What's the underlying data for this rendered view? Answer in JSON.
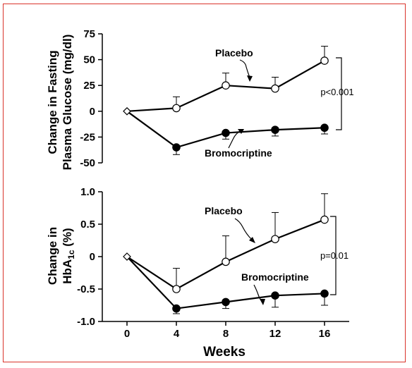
{
  "colors": {
    "frame": "#d9342b",
    "ink": "#000000",
    "open_marker": "#ffffff"
  },
  "chart_data": [
    {
      "type": "line",
      "ylabel_line1": "Change in Fasting",
      "ylabel_line2": "Plasma Glucose (mg/dl)",
      "xlabel": "",
      "x": [
        0,
        4,
        8,
        12,
        16
      ],
      "xlim": [
        -2,
        18
      ],
      "ylim": [
        -50,
        75
      ],
      "yticks": [
        75,
        50,
        25,
        0,
        -25,
        -50
      ],
      "ytick_labels": [
        "75",
        "50",
        "25",
        "0",
        "-25",
        "-50"
      ],
      "series": [
        {
          "name": "Placebo",
          "marker": "open-circle",
          "values": [
            0,
            3,
            25,
            22,
            49
          ],
          "error_upper": [
            null,
            14,
            37,
            33,
            63
          ]
        },
        {
          "name": "Bromocriptine",
          "marker": "filled-circle",
          "values": [
            0,
            -35,
            -21,
            -18,
            -16
          ],
          "error_lower": [
            null,
            -42,
            -27,
            -24,
            -22
          ]
        }
      ],
      "annotation": "p<0.001"
    },
    {
      "type": "line",
      "ylabel_line1": "Change in",
      "ylabel_prefix": "HbA",
      "ylabel_sub": "1c",
      "ylabel_suffix": " (%)",
      "xlabel": "Weeks",
      "x": [
        0,
        4,
        8,
        12,
        16
      ],
      "xticks": [
        0,
        4,
        8,
        12,
        16
      ],
      "xtick_labels": [
        "0",
        "4",
        "8",
        "12",
        "16"
      ],
      "xlim": [
        -2,
        18
      ],
      "ylim": [
        -1.0,
        1.0
      ],
      "yticks": [
        1.0,
        0.5,
        0,
        -0.5,
        -1.0
      ],
      "ytick_labels": [
        "1.0",
        "0.5",
        "0",
        "-0.5",
        "-1.0"
      ],
      "series": [
        {
          "name": "Placebo",
          "marker": "open-circle",
          "values": [
            0,
            -0.5,
            -0.08,
            0.27,
            0.57
          ],
          "error_upper": [
            null,
            -0.18,
            0.32,
            0.68,
            0.97
          ]
        },
        {
          "name": "Bromocriptine",
          "marker": "filled-circle",
          "values": [
            0,
            -0.8,
            -0.7,
            -0.6,
            -0.57
          ],
          "error_lower": [
            null,
            -0.88,
            -0.8,
            -0.78,
            -0.75
          ]
        }
      ],
      "annotation": "p=0.01"
    }
  ]
}
